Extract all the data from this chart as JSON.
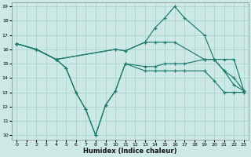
{
  "xlabel": "Humidex (Indice chaleur)",
  "bg_color": "#cce9e6",
  "grid_color": "#aad4d0",
  "line_color": "#1e7a6e",
  "xlim": [
    0,
    23
  ],
  "ylim": [
    10,
    19
  ],
  "xticks": [
    0,
    1,
    2,
    3,
    4,
    5,
    6,
    7,
    8,
    9,
    10,
    11,
    12,
    13,
    14,
    15,
    16,
    17,
    18,
    19,
    20,
    21,
    22,
    23
  ],
  "yticks": [
    10,
    11,
    12,
    13,
    14,
    15,
    16,
    17,
    18,
    19
  ],
  "lines": [
    {
      "x": [
        0,
        2,
        4,
        10,
        11,
        13,
        14,
        15,
        16,
        17,
        19,
        20,
        21,
        22,
        23
      ],
      "y": [
        16.4,
        16.0,
        15.3,
        16.0,
        15.9,
        16.5,
        17.5,
        18.2,
        19.0,
        18.2,
        17.0,
        15.3,
        14.5,
        14.0,
        13.1
      ]
    },
    {
      "x": [
        0,
        2,
        4,
        10,
        11,
        13,
        14,
        15,
        16,
        19,
        20,
        21,
        22,
        23
      ],
      "y": [
        16.4,
        16.0,
        15.3,
        16.0,
        15.9,
        16.5,
        16.5,
        16.5,
        16.5,
        15.3,
        15.3,
        15.3,
        15.3,
        13.1
      ]
    },
    {
      "x": [
        0,
        2,
        4,
        5,
        6,
        7,
        8,
        9,
        10,
        11,
        13,
        14,
        15,
        16,
        17,
        19,
        20,
        21,
        22,
        23
      ],
      "y": [
        16.4,
        16.0,
        15.3,
        14.7,
        13.0,
        11.8,
        10.0,
        12.1,
        13.1,
        15.0,
        14.8,
        14.8,
        15.0,
        15.0,
        15.0,
        15.3,
        15.3,
        14.5,
        13.5,
        13.1
      ]
    },
    {
      "x": [
        0,
        2,
        4,
        5,
        6,
        7,
        8,
        9,
        10,
        11,
        13,
        14,
        15,
        16,
        17,
        19,
        20,
        21,
        22,
        23
      ],
      "y": [
        16.4,
        16.0,
        15.3,
        14.7,
        13.0,
        11.8,
        10.0,
        12.1,
        13.1,
        15.0,
        14.5,
        14.5,
        14.5,
        14.5,
        14.5,
        14.5,
        13.8,
        13.0,
        13.0,
        13.0
      ]
    }
  ]
}
